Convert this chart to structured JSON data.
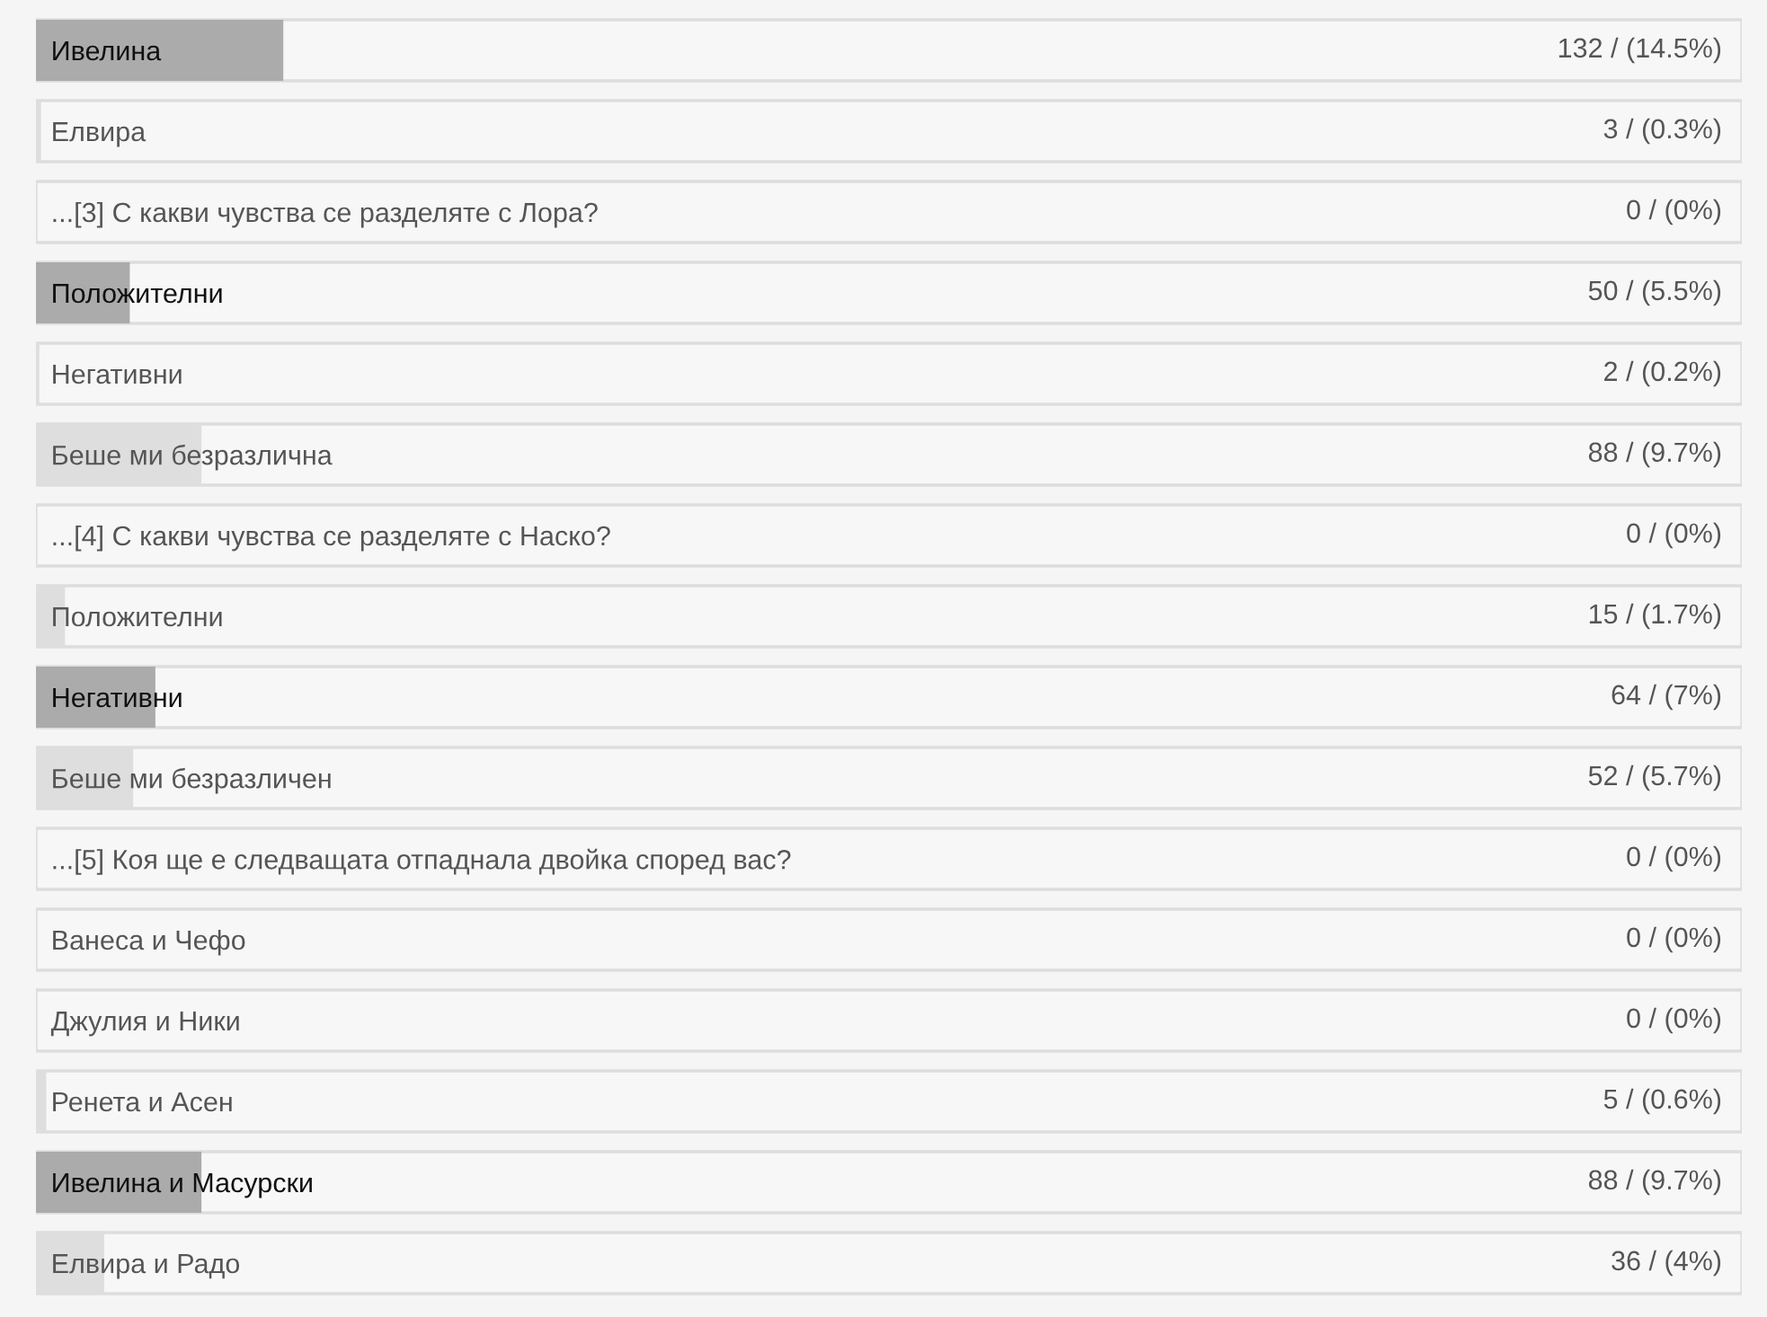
{
  "chart_data": {
    "type": "bar",
    "orientation": "horizontal",
    "tick_labels": "y",
    "xlim": [
      0,
      100
    ],
    "categories": [
      "Ивелина",
      "Елвира",
      "...[3] С какви чувства се разделяте с Лора?",
      "Положителни",
      "Негативни",
      "Беше ми безразлична",
      "...[4] С какви чувства се разделяте с Наско?",
      "Положителни",
      "Негативни",
      "Беше ми безразличен",
      "...[5] Коя ще е следващата отпаднала двойка според вас?",
      "Ванеса и Чефо",
      "Джулия и Ники",
      "Ренета и Асен",
      "Ивелина и Масурски",
      "Елвира и Радо"
    ],
    "values": [
      14.5,
      0.3,
      0,
      5.5,
      0.2,
      9.7,
      0,
      1.7,
      7,
      5.7,
      0,
      0,
      0,
      0.6,
      9.7,
      4
    ],
    "value_labels": [
      "132 / (14.5%)",
      "3 / (0.3%)",
      "0 / (0%)",
      "50 / (5.5%)",
      "2 / (0.2%)",
      "88 / (9.7%)",
      "0 / (0%)",
      "15 / (1.7%)",
      "64 / (7%)",
      "52 / (5.7%)",
      "0 / (0%)",
      "0 / (0%)",
      "0 / (0%)",
      "5 / (0.6%)",
      "88 / (9.7%)",
      "36 / (4%)"
    ],
    "colors": [
      "#ababab",
      "#dedede",
      "#dedede",
      "#ababab",
      "#dedede",
      "#dedede",
      "#dedede",
      "#dedede",
      "#ababab",
      "#dedede",
      "#dedede",
      "#dedede",
      "#dedede",
      "#dedede",
      "#ababab",
      "#dedede"
    ]
  }
}
